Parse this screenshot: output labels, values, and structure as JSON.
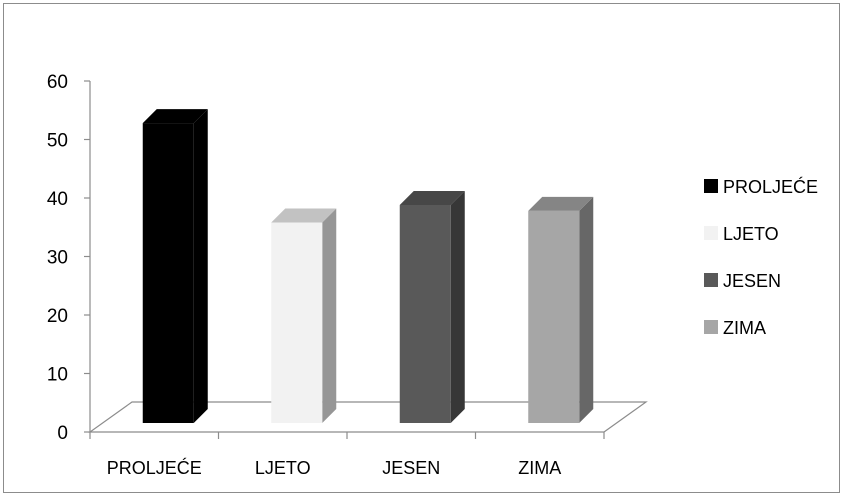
{
  "chart_data": {
    "type": "bar",
    "title": "",
    "xlabel": "",
    "ylabel": "",
    "categories": [
      "PROLJEĆE",
      "LJETO",
      "JESEN",
      "ZIMA"
    ],
    "values": [
      54,
      37,
      40,
      39
    ],
    "colors": [
      "#000000",
      "#f2f2f2",
      "#595959",
      "#a6a6a6"
    ],
    "ylim": [
      0,
      60
    ],
    "yticks": [
      0,
      10,
      20,
      30,
      40,
      50,
      60
    ],
    "grid": false,
    "legend": {
      "position": "right",
      "entries": [
        "PROLJEĆE",
        "LJETO",
        "JESEN",
        "ZIMA"
      ]
    },
    "style": "3d-column"
  }
}
